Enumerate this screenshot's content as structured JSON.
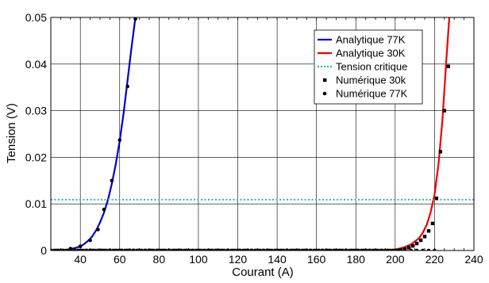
{
  "chart_data": {
    "type": "line",
    "xlabel": "Courant (A)",
    "ylabel": "Tension (V)",
    "xlim": [
      25,
      240
    ],
    "ylim": [
      0,
      0.05
    ],
    "xticks": [
      40,
      60,
      80,
      100,
      120,
      140,
      160,
      180,
      200,
      220,
      240
    ],
    "yticks": [
      0,
      0.01,
      0.02,
      0.03,
      0.04,
      0.05
    ],
    "xtick_labels": [
      "40",
      "60",
      "80",
      "100",
      "120",
      "140",
      "160",
      "180",
      "200",
      "220",
      "240"
    ],
    "ytick_labels": [
      "0",
      "0.01",
      "0.02",
      "0.03",
      "0.04",
      "0.05"
    ],
    "grid": true,
    "legend_position": "top-right",
    "series": [
      {
        "name": "Analytique 77K",
        "kind": "line",
        "color": "#0000cc",
        "x": [
          25,
          30,
          34,
          38,
          40,
          42,
          44,
          46,
          48,
          50,
          52,
          54,
          56,
          58,
          60,
          62,
          64,
          66,
          68
        ],
        "y": [
          0,
          0,
          0.0002,
          0.0006,
          0.0009,
          0.0014,
          0.0021,
          0.003,
          0.0043,
          0.006,
          0.0081,
          0.0108,
          0.0143,
          0.0185,
          0.0235,
          0.0295,
          0.0365,
          0.0435,
          0.05
        ]
      },
      {
        "name": "Analytique 30K",
        "kind": "line",
        "color": "#ee0000",
        "x": [
          25,
          60,
          100,
          140,
          180,
          195,
          200,
          204,
          208,
          212,
          214,
          216,
          218,
          220,
          222,
          224,
          226,
          227.5
        ],
        "y": [
          0,
          0,
          0,
          0,
          0,
          0,
          0.0002,
          0.0006,
          0.0013,
          0.0026,
          0.0038,
          0.0055,
          0.0082,
          0.012,
          0.0185,
          0.028,
          0.041,
          0.05
        ]
      },
      {
        "name": "Tension critique",
        "kind": "dotted",
        "color": "#2ab5b5",
        "x": [
          25,
          240
        ],
        "y": [
          0.0109,
          0.0109
        ]
      },
      {
        "name": "Numérique 30k",
        "kind": "square",
        "color": "#000000",
        "x": [
          25,
          27,
          29,
          31,
          33,
          35,
          37,
          39,
          41,
          43,
          45,
          47,
          49,
          51,
          53,
          55,
          57,
          59,
          61,
          63,
          65,
          67,
          69,
          71,
          73,
          75,
          77,
          79,
          81,
          83,
          85,
          87,
          89,
          91,
          93,
          95,
          97,
          99,
          101,
          103,
          105,
          107,
          109,
          111,
          113,
          115,
          117,
          119,
          121,
          123,
          125,
          127,
          129,
          131,
          133,
          135,
          137,
          139,
          141,
          143,
          145,
          147,
          149,
          151,
          153,
          155,
          157,
          159,
          161,
          163,
          165,
          167,
          169,
          171,
          173,
          175,
          177,
          179,
          181,
          183,
          185,
          187,
          189,
          191,
          193,
          195,
          197,
          199,
          201,
          203,
          205,
          207,
          209,
          211,
          213,
          215,
          217,
          219,
          221,
          223,
          225,
          227
        ],
        "y": [
          0,
          0,
          0,
          0,
          0,
          0,
          0,
          0,
          0,
          0,
          0,
          0,
          0,
          0,
          0,
          0,
          0,
          0,
          0,
          0,
          0,
          0,
          0,
          0,
          0,
          0,
          0,
          0,
          0,
          0,
          0,
          0,
          0,
          0,
          0,
          0,
          0,
          0,
          0,
          0,
          0,
          0,
          0,
          0,
          0,
          0,
          0,
          0,
          0,
          0,
          0,
          0,
          0,
          0,
          0,
          0,
          0,
          0,
          0,
          0,
          0,
          0,
          0,
          0,
          0,
          0,
          0,
          0,
          0,
          0,
          0,
          0,
          0,
          0,
          0,
          0,
          0,
          0,
          0,
          0,
          0,
          0,
          0,
          0,
          0,
          0,
          0,
          0,
          0,
          0.0001,
          0.0003,
          0.0006,
          0.001,
          0.0015,
          0.0022,
          0.003,
          0.0042,
          0.0058,
          0.0112,
          0.0212,
          0.03,
          0.0395
        ]
      },
      {
        "name": "Numérique 77K",
        "kind": "dot",
        "color": "#000000",
        "x": [
          25,
          28,
          31,
          34,
          37,
          40,
          43,
          46,
          49,
          52,
          55,
          58,
          61,
          64,
          67,
          70,
          73,
          76,
          79,
          82,
          85,
          88,
          91,
          94,
          97,
          100,
          103,
          106,
          109,
          112,
          115,
          118,
          121,
          124,
          127,
          130,
          133,
          136,
          139,
          142,
          145,
          148,
          151,
          154,
          157,
          160,
          163,
          166,
          169,
          172,
          175,
          178,
          181,
          184,
          187,
          190,
          193,
          196,
          199,
          202,
          205,
          208,
          211,
          214,
          217,
          220,
          35,
          40,
          45,
          49,
          52,
          56,
          60,
          64,
          68
        ],
        "y": [
          0,
          0,
          0,
          0,
          0,
          0,
          0,
          0,
          0,
          0,
          0,
          0,
          0,
          0,
          0,
          0,
          0,
          0,
          0,
          0,
          0,
          0,
          0,
          0,
          0,
          0,
          0,
          0,
          0,
          0,
          0,
          0,
          0,
          0,
          0,
          0,
          0,
          0,
          0,
          0,
          0,
          0,
          0,
          0,
          0,
          0,
          0,
          0,
          0,
          0,
          0,
          0,
          0,
          0,
          0,
          0,
          0,
          0,
          0,
          0,
          0,
          0,
          0,
          0,
          0,
          0,
          0.0004,
          0.0009,
          0.0022,
          0.0045,
          0.0088,
          0.015,
          0.0237,
          0.0352,
          0.0497
        ]
      }
    ]
  }
}
